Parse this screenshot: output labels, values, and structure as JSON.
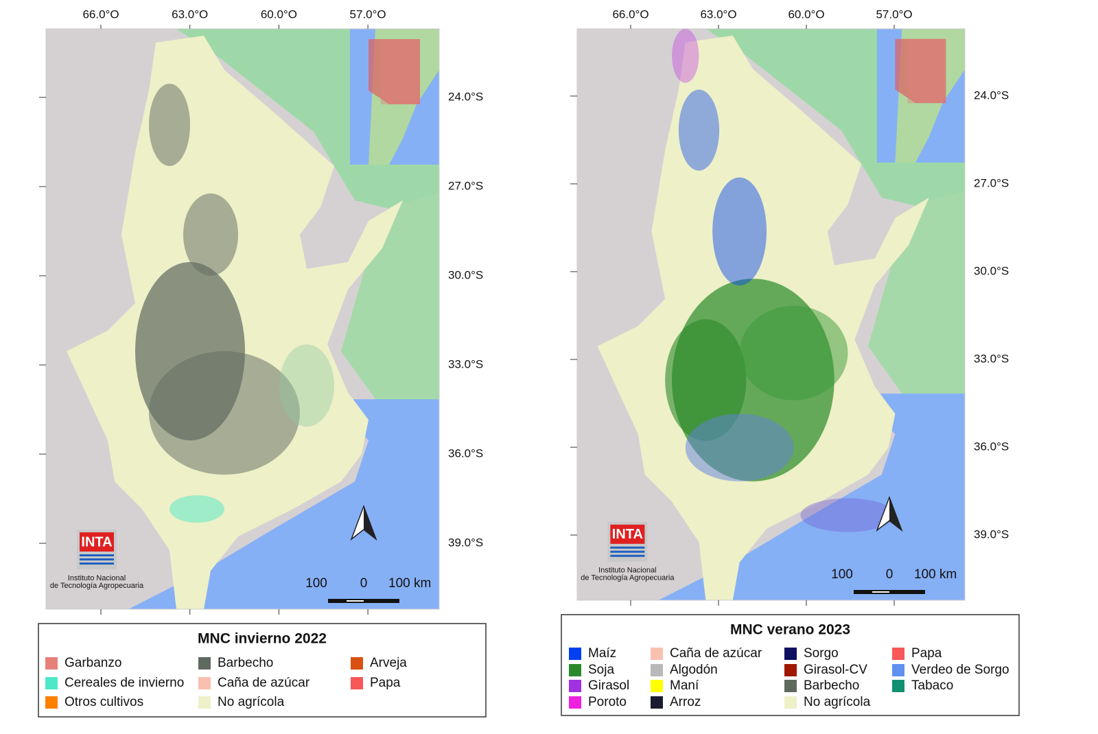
{
  "maps": [
    {
      "lon_labels": [
        "66.0°O",
        "63.0°O",
        "60.0°O",
        "57.0°O"
      ],
      "lat_labels": [
        "24.0°S",
        "27.0°S",
        "30.0°S",
        "33.0°S",
        "36.0°S",
        "39.0°S"
      ],
      "scale": [
        "100",
        "0",
        "100 km"
      ],
      "logo": {
        "name": "INTA",
        "line1": "Instituto Nacional",
        "line2": "de Tecnología Agropecuaria"
      },
      "legend": {
        "title": "MNC invierno 2022",
        "rows": 3,
        "items": [
          {
            "name": "Garbanzo",
            "color": "#e8807a"
          },
          {
            "name": "Cereales de invierno",
            "color": "#4de8c8"
          },
          {
            "name": "Otros cultivos",
            "color": "#ff8000"
          },
          {
            "name": "Barbecho",
            "color": "#5f6a5f"
          },
          {
            "name": "Caña de azúcar",
            "color": "#f9c0b0"
          },
          {
            "name": "No agrícola",
            "color": "#eef0c8"
          },
          {
            "name": "Arveja",
            "color": "#d95010"
          },
          {
            "name": "Papa",
            "color": "#f85858"
          }
        ]
      }
    },
    {
      "lon_labels": [
        "66.0°O",
        "63.0°O",
        "60.0°O",
        "57.0°O"
      ],
      "lat_labels": [
        "24.0°S",
        "27.0°S",
        "30.0°S",
        "33.0°S",
        "36.0°S",
        "39.0°S"
      ],
      "scale": [
        "100",
        "0",
        "100 km"
      ],
      "logo": {
        "name": "INTA",
        "line1": "Instituto Nacional",
        "line2": "de Tecnología Agropecuaria"
      },
      "legend": {
        "title": "MNC verano 2023",
        "rows": 4,
        "items": [
          {
            "name": "Maíz",
            "color": "#0040f0"
          },
          {
            "name": "Soja",
            "color": "#2a8a2a"
          },
          {
            "name": "Girasol",
            "color": "#a030e0"
          },
          {
            "name": "Poroto",
            "color": "#f020e0"
          },
          {
            "name": "Caña de azúcar",
            "color": "#f9c0b0"
          },
          {
            "name": "Algodón",
            "color": "#b8b8b8"
          },
          {
            "name": "Maní",
            "color": "#ffff00"
          },
          {
            "name": "Arroz",
            "color": "#1a1a30"
          },
          {
            "name": "Sorgo",
            "color": "#101060"
          },
          {
            "name": "Girasol-CV",
            "color": "#a01800"
          },
          {
            "name": "Barbecho",
            "color": "#5f6a5f"
          },
          {
            "name": "No agrícola",
            "color": "#eef0c8"
          },
          {
            "name": "Papa",
            "color": "#f85858"
          },
          {
            "name": "Verdeo de Sorgo",
            "color": "#6090f0"
          },
          {
            "name": "Tabaco",
            "color": "#109070"
          }
        ]
      }
    }
  ]
}
